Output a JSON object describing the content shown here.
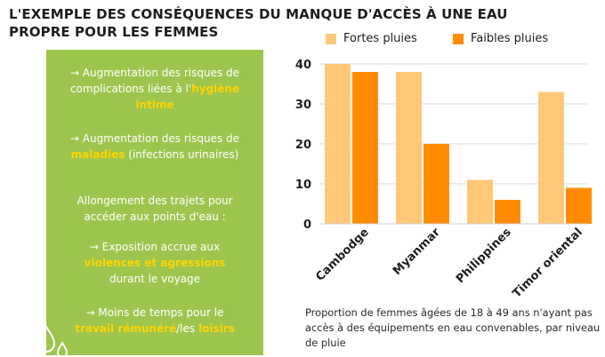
{
  "title_lines": [
    "L'EXEMPLE DES CONSÉQUENCES DU MANQUE D'ACCÈS À UNE EAU",
    "PROPRE POUR LES FEMMES"
  ],
  "panel": {
    "items": [
      {
        "before": "→ Augmentation des risques de complications liées à l'",
        "highlight": "hygiène intime",
        "after": ""
      },
      {
        "before": "→ Augmentation des risques de ",
        "highlight": "maladies",
        "after": " (infections urinaires)"
      },
      {
        "before": "Allongement des trajets pour accéder aux points d'eau :",
        "highlight": "",
        "after": ""
      },
      {
        "before": "→ Exposition accrue aux ",
        "highlight": "violences et agressions",
        "after": " durant le voyage"
      },
      {
        "before": "→ Moins de temps  pour le ",
        "highlight": "travail rémunéré",
        "after": "/les ",
        "highlight2": "loisirs"
      }
    ],
    "colors": {
      "background": "#9dc54e",
      "text": "#ffffff",
      "highlight": "#ffd400"
    },
    "decoration": "water-drops-icon"
  },
  "caption": "Proportion de femmes âgées de 18 à 49 ans n'ayant pas accès à des équipements en eau convenables, par niveau de pluie",
  "chart_data": {
    "type": "bar",
    "categories": [
      "Cambodge",
      "Myanmar",
      "Philippines",
      "Timor oriental"
    ],
    "series": [
      {
        "name": "Fortes pluies",
        "values": [
          40,
          38,
          11,
          33
        ],
        "color": "#ffc878"
      },
      {
        "name": "Faibles pluies",
        "values": [
          38,
          20,
          6,
          9
        ],
        "color": "#ff8c00"
      }
    ],
    "ylim": [
      0,
      40
    ],
    "yticks": [
      0,
      10,
      20,
      30,
      40
    ],
    "grid": true,
    "legend_position": "top"
  }
}
